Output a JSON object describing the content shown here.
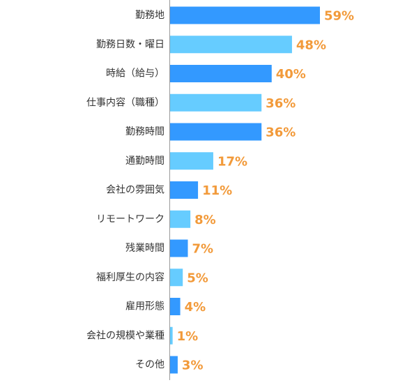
{
  "chart_data": {
    "type": "bar",
    "orientation": "horizontal",
    "categories": [
      "勤務地",
      "勤務日数・曜日",
      "時給（給与）",
      "仕事内容（職種）",
      "勤務時間",
      "通勤時間",
      "会社の雰囲気",
      "リモートワーク",
      "残業時間",
      "福利厚生の内容",
      "雇用形態",
      "会社の規模や業種",
      "その他"
    ],
    "values": [
      59,
      48,
      40,
      36,
      36,
      17,
      11,
      8,
      7,
      5,
      4,
      1,
      3
    ],
    "value_labels": [
      "59%",
      "48%",
      "40%",
      "36%",
      "36%",
      "17%",
      "11%",
      "8%",
      "7%",
      "5%",
      "4%",
      "1%",
      "3%"
    ],
    "unit": "%",
    "bar_colors": [
      "#3399ff",
      "#66ccff"
    ],
    "value_label_color": "#f29a3a",
    "axis_line_color": "#999999",
    "grid": false,
    "legend": "none"
  }
}
